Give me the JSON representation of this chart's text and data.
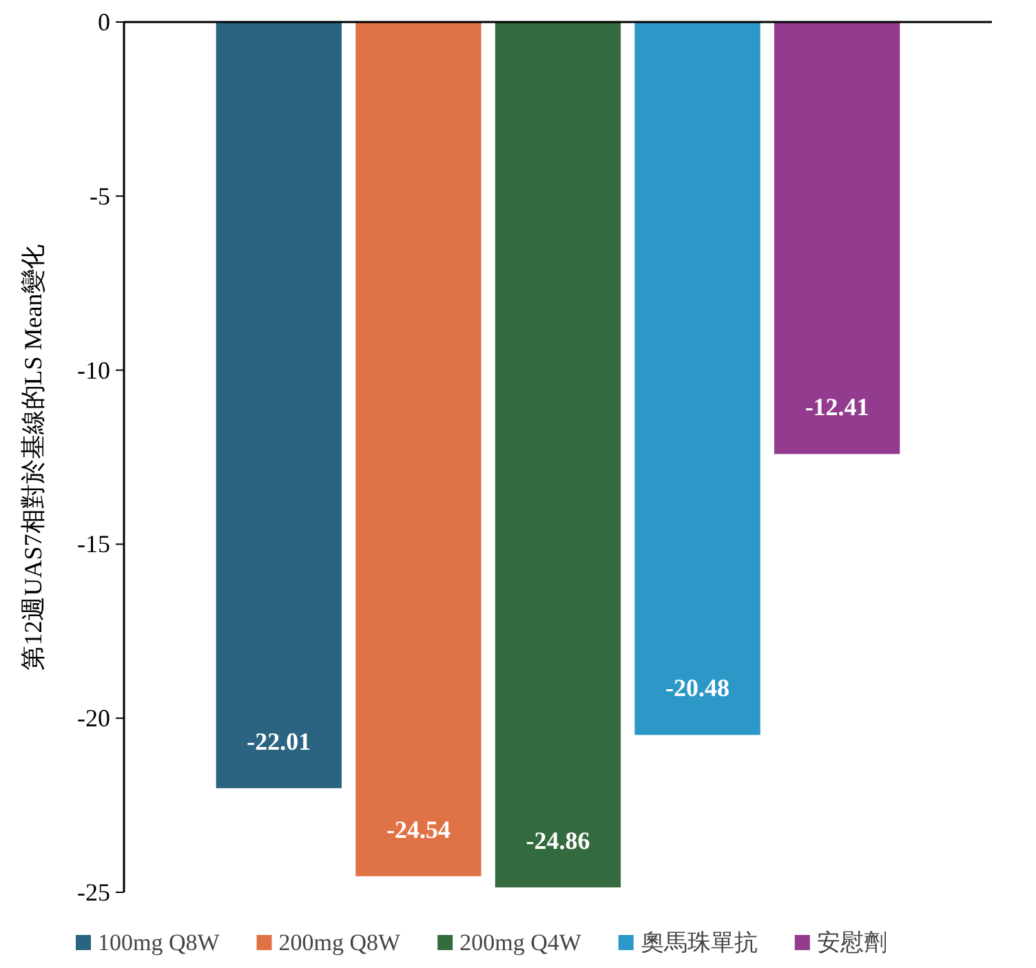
{
  "chart_data": {
    "type": "bar",
    "ylabel": "第12週UAS7相對於基線的LS Mean變化",
    "categories": [
      null,
      null,
      null,
      null,
      null
    ],
    "series": [
      {
        "name": "100mg Q8W",
        "color": "#2b6480",
        "values": [
          -22.01,
          null,
          null,
          null,
          null
        ]
      },
      {
        "name": "200mg Q8W",
        "color": "#e07345",
        "values": [
          null,
          -24.54,
          null,
          null,
          null
        ]
      },
      {
        "name": "200mg Q4W",
        "color": "#336b3e",
        "values": [
          null,
          null,
          -24.86,
          null,
          null
        ]
      },
      {
        "name": "奧馬珠單抗",
        "color": "#2b98c8",
        "values": [
          null,
          null,
          null,
          -20.48,
          null
        ]
      },
      {
        "name": "安慰劑",
        "color": "#933b8e",
        "values": [
          null,
          null,
          null,
          null,
          -12.41
        ]
      }
    ],
    "data_labels": true,
    "ylim": [
      -25,
      0
    ],
    "yticks": [
      0,
      -5,
      -10,
      -15,
      -20,
      -25
    ],
    "legend": "bottom",
    "grid": false
  }
}
